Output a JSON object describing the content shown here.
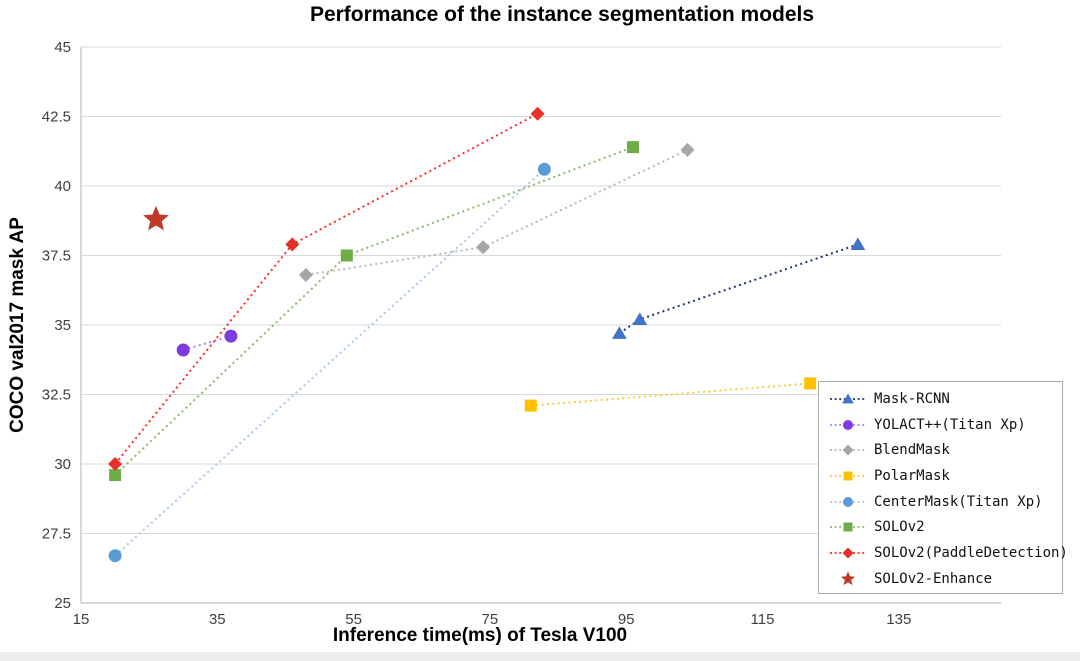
{
  "chart_data": {
    "type": "line",
    "title": "Performance of the instance segmentation models",
    "xlabel": "Inference time(ms) of Tesla V100",
    "ylabel": "COCO val2017 mask AP",
    "xlim": [
      15,
      150
    ],
    "ylim": [
      25,
      45
    ],
    "xticks": [
      15,
      35,
      55,
      75,
      95,
      115,
      135
    ],
    "yticks": [
      25,
      27.5,
      30,
      32.5,
      35,
      37.5,
      40,
      42.5,
      45
    ],
    "grid": "horizontal",
    "grid_color": "#d9d9d9",
    "axis_color": "#bfbfbf",
    "tick_color": "#404040",
    "legend_position": "inside-bottom-right",
    "line_style": "dotted",
    "series": [
      {
        "name": "Mask-RCNN",
        "marker": "triangle",
        "marker_color": "#4472c4",
        "line_color": "#1f3864",
        "points": [
          [
            94,
            34.7
          ],
          [
            97,
            35.2
          ],
          [
            129,
            37.9
          ]
        ]
      },
      {
        "name": "YOLACT++(Titan Xp)",
        "marker": "circle",
        "marker_color": "#7d3be0",
        "line_color": "#a385f2",
        "points": [
          [
            30,
            34.1
          ],
          [
            37,
            34.6
          ]
        ]
      },
      {
        "name": "BlendMask",
        "marker": "diamond",
        "marker_color": "#a6a6a6",
        "line_color": "#b8b8b8",
        "points": [
          [
            48,
            36.8
          ],
          [
            74,
            37.8
          ],
          [
            104,
            41.3
          ]
        ]
      },
      {
        "name": "PolarMask",
        "marker": "square",
        "marker_color": "#ffc000",
        "line_color": "#ffc940",
        "points": [
          [
            81,
            32.1
          ],
          [
            122,
            32.9
          ]
        ]
      },
      {
        "name": "CenterMask(Titan Xp)",
        "marker": "circle",
        "marker_color": "#5b9bd5",
        "line_color": "#aac7e8",
        "points": [
          [
            20,
            26.7
          ],
          [
            83,
            40.6
          ]
        ]
      },
      {
        "name": "SOLOv2",
        "marker": "square",
        "marker_color": "#70ad47",
        "line_color": "#8ab96b",
        "points": [
          [
            20,
            29.6
          ],
          [
            54,
            37.5
          ],
          [
            96,
            41.4
          ]
        ]
      },
      {
        "name": "SOLOv2(PaddleDetection)",
        "marker": "diamond",
        "marker_color": "#e8302a",
        "line_color": "#ff2a2a",
        "points": [
          [
            20,
            30
          ],
          [
            46,
            37.9
          ],
          [
            82,
            42.6
          ]
        ]
      },
      {
        "name": "SOLOv2-Enhance",
        "marker": "star",
        "marker_color": "#c0392b",
        "line_color": null,
        "points": [
          [
            26,
            38.8
          ]
        ]
      }
    ]
  }
}
